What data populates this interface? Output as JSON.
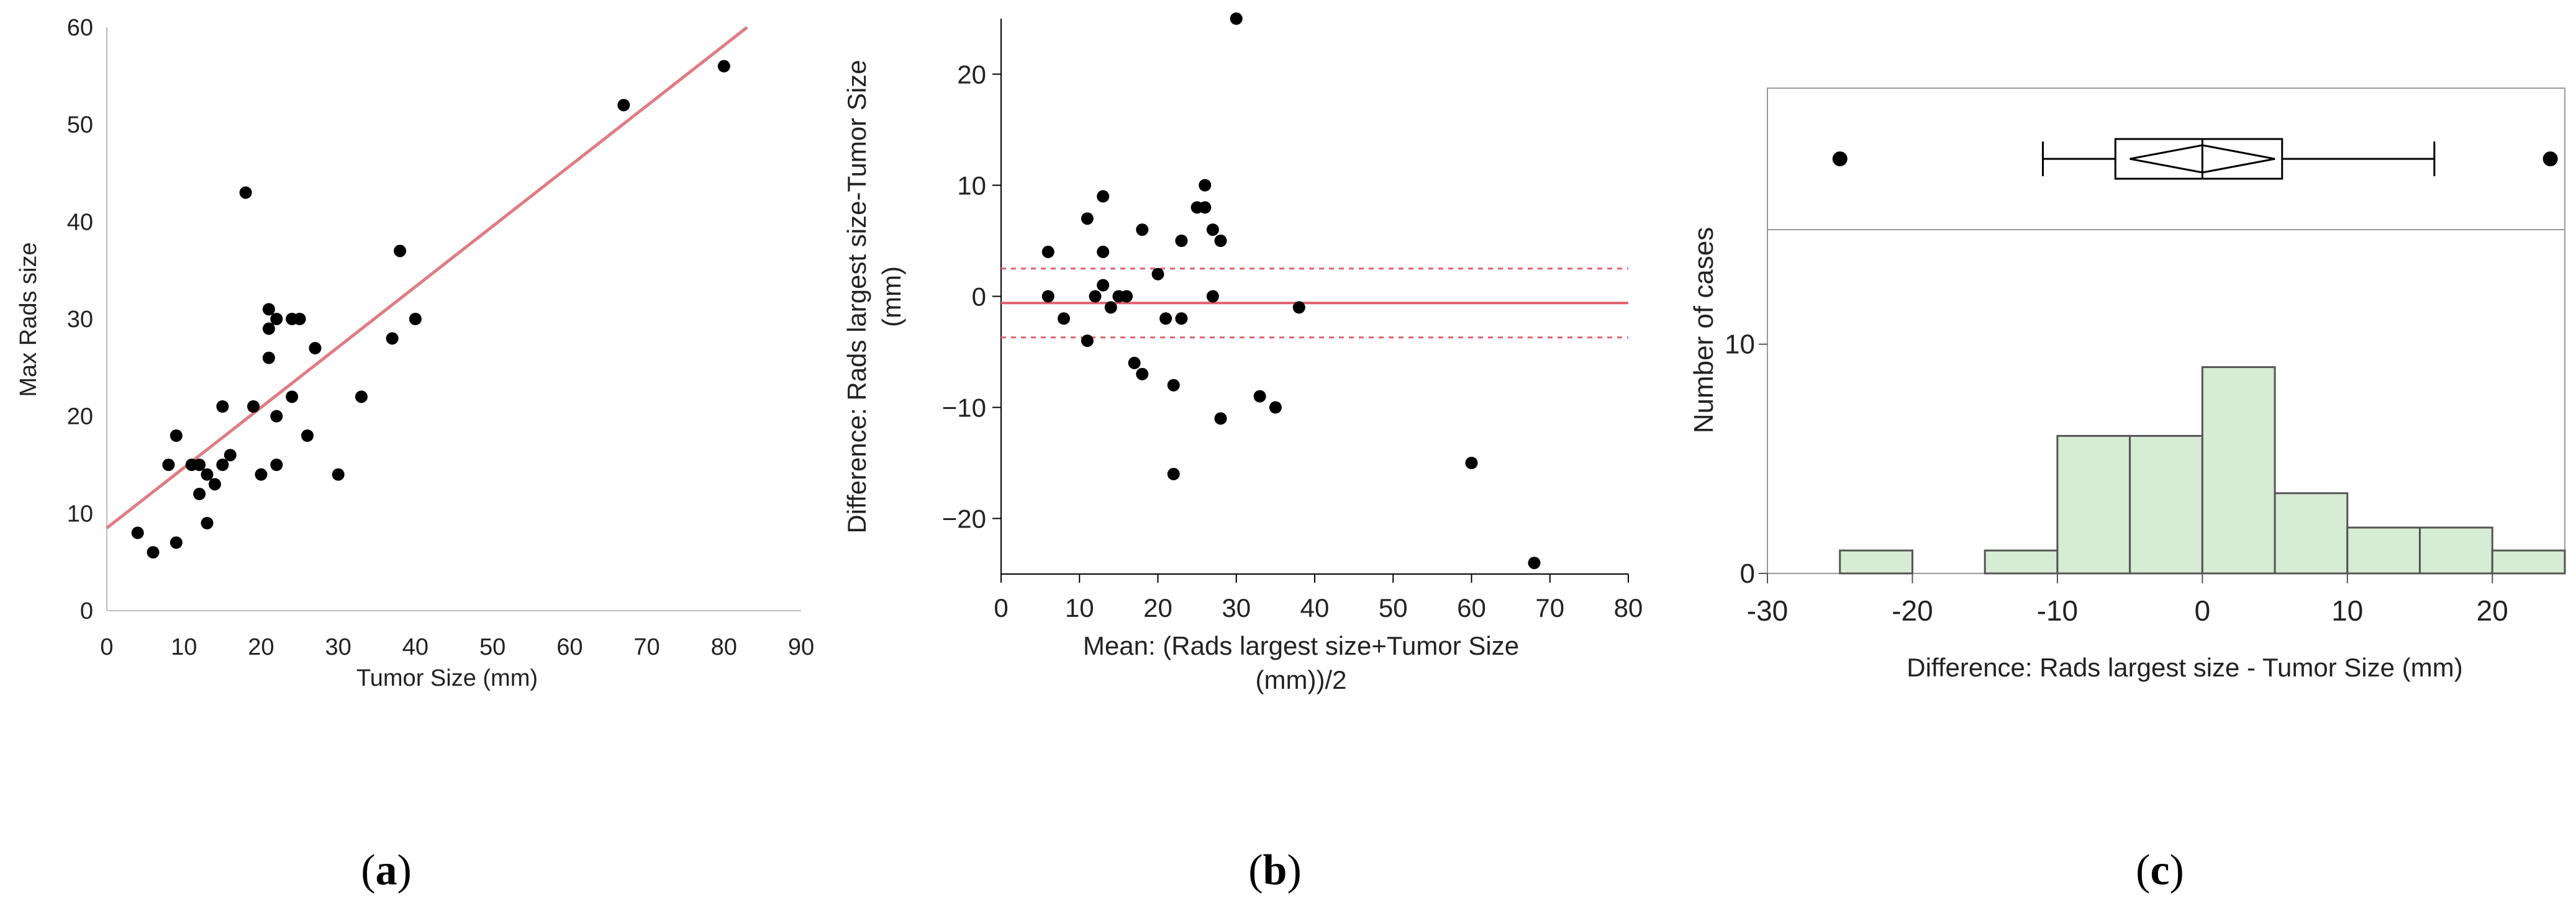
{
  "chart_data": [
    {
      "panel": "(a)",
      "type": "scatter",
      "title": "",
      "xlabel": "Tumor Size (mm)",
      "ylabel": "Max Rads size",
      "xlim": [
        0,
        90
      ],
      "ylim": [
        0,
        60
      ],
      "xticks": [
        0,
        10,
        20,
        30,
        40,
        50,
        60,
        70,
        80,
        90
      ],
      "yticks": [
        0,
        10,
        20,
        30,
        40,
        50,
        60
      ],
      "grid": false,
      "colors": {
        "points": "#000000",
        "fit_line": "#e07b84"
      },
      "fit_line": {
        "label": "",
        "x": [
          0,
          83
        ],
        "y": [
          8.5,
          60
        ]
      },
      "points": [
        [
          4,
          8
        ],
        [
          6,
          6
        ],
        [
          8,
          15
        ],
        [
          9,
          7
        ],
        [
          9,
          18
        ],
        [
          11,
          15
        ],
        [
          12,
          12
        ],
        [
          12,
          15
        ],
        [
          13,
          14
        ],
        [
          13,
          9
        ],
        [
          14,
          13
        ],
        [
          15,
          15
        ],
        [
          15,
          21
        ],
        [
          16,
          16
        ],
        [
          18,
          43
        ],
        [
          19,
          21
        ],
        [
          20,
          14
        ],
        [
          21,
          26
        ],
        [
          21,
          31
        ],
        [
          21,
          29
        ],
        [
          22,
          30
        ],
        [
          22,
          15
        ],
        [
          22,
          20
        ],
        [
          24,
          22
        ],
        [
          24,
          30
        ],
        [
          25,
          30
        ],
        [
          26,
          18
        ],
        [
          27,
          27
        ],
        [
          30,
          14
        ],
        [
          33,
          22
        ],
        [
          37,
          28
        ],
        [
          38,
          37
        ],
        [
          40,
          30
        ],
        [
          67,
          52
        ],
        [
          80,
          56
        ]
      ]
    },
    {
      "panel": "(b)",
      "type": "scatter",
      "title": "",
      "xlabel_lines": [
        "Mean: (Rads largest size+Tumor Size",
        "(mm))/2"
      ],
      "ylabel_lines": [
        "Difference: Rads largest size-Tumor Size",
        "(mm)"
      ],
      "xlim": [
        0,
        80
      ],
      "ylim": [
        -25,
        25
      ],
      "xticks": [
        0,
        10,
        20,
        30,
        40,
        50,
        60,
        70,
        80
      ],
      "yticks": [
        -20,
        -10,
        0,
        10,
        20
      ],
      "grid": false,
      "colors": {
        "points": "#000000",
        "mean_line": "#e0626e",
        "limit_lines": "#e0626e"
      },
      "mean_difference": -0.6,
      "limits_of_agreement": [
        -3.7,
        2.5
      ],
      "points": [
        [
          6,
          4
        ],
        [
          6,
          0
        ],
        [
          8,
          -2
        ],
        [
          11,
          -4
        ],
        [
          11,
          7
        ],
        [
          12,
          0
        ],
        [
          13,
          4
        ],
        [
          13,
          9
        ],
        [
          14,
          -1
        ],
        [
          13,
          1
        ],
        [
          15,
          0
        ],
        [
          16,
          0
        ],
        [
          17,
          -6
        ],
        [
          18,
          -7
        ],
        [
          18,
          6
        ],
        [
          20,
          2
        ],
        [
          21,
          -2
        ],
        [
          22,
          -16
        ],
        [
          22,
          -8
        ],
        [
          23,
          -2
        ],
        [
          23,
          5
        ],
        [
          25,
          8
        ],
        [
          26,
          8
        ],
        [
          26,
          10
        ],
        [
          27,
          6
        ],
        [
          27,
          0
        ],
        [
          28,
          5
        ],
        [
          28,
          -11
        ],
        [
          33,
          -9
        ],
        [
          35,
          -10
        ],
        [
          38,
          -1
        ],
        [
          60,
          -15
        ],
        [
          68,
          -24
        ],
        [
          30,
          25
        ]
      ]
    },
    {
      "panel": "(c)",
      "type": "histogram",
      "title": "",
      "xlabel": "Difference: Rads largest size - Tumor Size (mm)",
      "ylabel": "Number of cases",
      "xlim": [
        -30,
        25
      ],
      "ylim": [
        0,
        15
      ],
      "xticks": [
        -30,
        -20,
        -10,
        0,
        10,
        20
      ],
      "yticks": [
        0,
        10
      ],
      "grid": false,
      "colors": {
        "bars": "#d6ecd4",
        "bar_edge": "#555555",
        "boxplot": "#000000"
      },
      "bin_edges": [
        -25,
        -20,
        -15,
        -10,
        -5,
        0,
        5,
        10,
        15,
        20,
        25
      ],
      "counts": [
        1,
        0,
        1,
        6,
        6,
        9,
        3.5,
        2,
        2,
        1
      ],
      "boxplot": {
        "whisker_low": -11,
        "q1": -6,
        "median": 0,
        "q3": 5.5,
        "whisker_high": 16,
        "mean_diamond_half_width": 5,
        "outliers": [
          -25,
          24
        ]
      }
    }
  ],
  "panel_labels": [
    {
      "open": "(",
      "letter": "a",
      "close": ")"
    },
    {
      "open": "(",
      "letter": "b",
      "close": ")"
    },
    {
      "open": "(",
      "letter": "c",
      "close": ")"
    }
  ]
}
